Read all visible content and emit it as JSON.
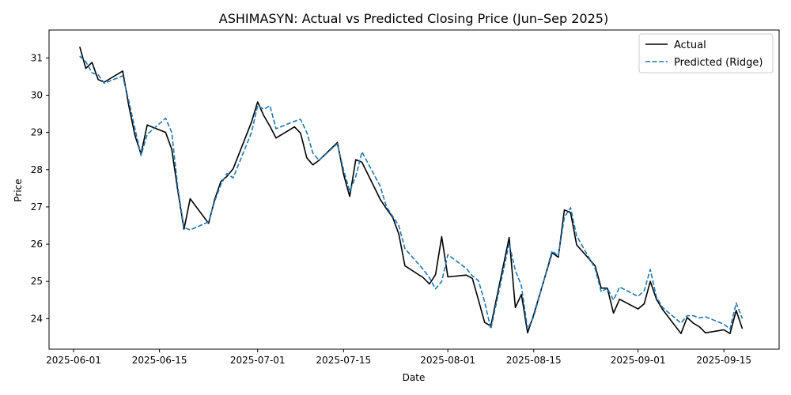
{
  "chart_data": {
    "type": "line",
    "title": "ASHIMASYN: Actual vs Predicted Closing Price (Jun–Sep 2025)",
    "xlabel": "Date",
    "ylabel": "Price",
    "x_ticks": [
      "2025-06-01",
      "2025-06-15",
      "2025-07-01",
      "2025-07-15",
      "2025-08-01",
      "2025-08-15",
      "2025-09-01",
      "2025-09-15"
    ],
    "y_ticks": [
      24,
      25,
      26,
      27,
      28,
      29,
      30,
      31
    ],
    "xlim": [
      "2025-05-28",
      "2025-09-24"
    ],
    "ylim": [
      23.18,
      31.75
    ],
    "grid": false,
    "legend_position": "top-right",
    "series": [
      {
        "name": "Actual",
        "color": "#000000",
        "style": "solid",
        "x": [
          "2025-06-02",
          "2025-06-03",
          "2025-06-04",
          "2025-06-05",
          "2025-06-06",
          "2025-06-09",
          "2025-06-10",
          "2025-06-11",
          "2025-06-12",
          "2025-06-13",
          "2025-06-16",
          "2025-06-17",
          "2025-06-18",
          "2025-06-19",
          "2025-06-20",
          "2025-06-23",
          "2025-06-24",
          "2025-06-25",
          "2025-06-26",
          "2025-06-27",
          "2025-06-30",
          "2025-07-01",
          "2025-07-02",
          "2025-07-03",
          "2025-07-04",
          "2025-07-07",
          "2025-07-08",
          "2025-07-09",
          "2025-07-10",
          "2025-07-11",
          "2025-07-14",
          "2025-07-15",
          "2025-07-16",
          "2025-07-17",
          "2025-07-18",
          "2025-07-21",
          "2025-07-22",
          "2025-07-23",
          "2025-07-24",
          "2025-07-25",
          "2025-07-28",
          "2025-07-29",
          "2025-07-30",
          "2025-07-31",
          "2025-08-01",
          "2025-08-04",
          "2025-08-05",
          "2025-08-06",
          "2025-08-07",
          "2025-08-08",
          "2025-08-11",
          "2025-08-12",
          "2025-08-13",
          "2025-08-14",
          "2025-08-15",
          "2025-08-18",
          "2025-08-19",
          "2025-08-20",
          "2025-08-21",
          "2025-08-22",
          "2025-08-25",
          "2025-08-26",
          "2025-08-27",
          "2025-08-28",
          "2025-08-29",
          "2025-09-01",
          "2025-09-02",
          "2025-09-03",
          "2025-09-04",
          "2025-09-05",
          "2025-09-08",
          "2025-09-09",
          "2025-09-10",
          "2025-09-11",
          "2025-09-12",
          "2025-09-15",
          "2025-09-16",
          "2025-09-17",
          "2025-09-18"
        ],
        "y": [
          31.3,
          30.72,
          30.88,
          30.42,
          30.35,
          30.65,
          29.72,
          28.92,
          28.42,
          29.2,
          29.0,
          28.55,
          27.42,
          26.4,
          27.22,
          26.56,
          27.2,
          27.68,
          27.82,
          28.02,
          29.28,
          29.82,
          29.45,
          29.17,
          28.85,
          29.15,
          28.98,
          28.32,
          28.13,
          28.25,
          28.73,
          27.88,
          27.28,
          28.27,
          28.2,
          27.2,
          26.95,
          26.72,
          26.28,
          25.42,
          25.1,
          24.93,
          25.18,
          26.2,
          25.12,
          25.17,
          25.08,
          24.5,
          23.9,
          23.8,
          26.18,
          24.3,
          24.65,
          23.62,
          24.1,
          25.77,
          25.65,
          26.92,
          26.85,
          25.98,
          25.42,
          24.82,
          24.82,
          24.15,
          24.52,
          24.26,
          24.4,
          25.0,
          24.52,
          24.25,
          23.6,
          24.03,
          23.88,
          23.78,
          23.62,
          23.7,
          23.6,
          24.22,
          23.73
        ]
      },
      {
        "name": "Predicted (Ridge)",
        "color": "#1f77b4",
        "style": "dashed",
        "x": [
          "2025-06-02",
          "2025-06-03",
          "2025-06-04",
          "2025-06-05",
          "2025-06-06",
          "2025-06-09",
          "2025-06-10",
          "2025-06-11",
          "2025-06-12",
          "2025-06-13",
          "2025-06-16",
          "2025-06-17",
          "2025-06-18",
          "2025-06-19",
          "2025-06-20",
          "2025-06-23",
          "2025-06-24",
          "2025-06-25",
          "2025-06-26",
          "2025-06-27",
          "2025-06-30",
          "2025-07-01",
          "2025-07-02",
          "2025-07-03",
          "2025-07-04",
          "2025-07-07",
          "2025-07-08",
          "2025-07-09",
          "2025-07-10",
          "2025-07-11",
          "2025-07-14",
          "2025-07-15",
          "2025-07-16",
          "2025-07-17",
          "2025-07-18",
          "2025-07-21",
          "2025-07-22",
          "2025-07-23",
          "2025-07-24",
          "2025-07-25",
          "2025-07-28",
          "2025-07-29",
          "2025-07-30",
          "2025-07-31",
          "2025-08-01",
          "2025-08-04",
          "2025-08-05",
          "2025-08-06",
          "2025-08-07",
          "2025-08-08",
          "2025-08-11",
          "2025-08-12",
          "2025-08-13",
          "2025-08-14",
          "2025-08-15",
          "2025-08-18",
          "2025-08-19",
          "2025-08-20",
          "2025-08-21",
          "2025-08-22",
          "2025-08-25",
          "2025-08-26",
          "2025-08-27",
          "2025-08-28",
          "2025-08-29",
          "2025-09-01",
          "2025-09-02",
          "2025-09-03",
          "2025-09-04",
          "2025-09-05",
          "2025-09-08",
          "2025-09-09",
          "2025-09-10",
          "2025-09-11",
          "2025-09-12",
          "2025-09-15",
          "2025-09-16",
          "2025-09-17",
          "2025-09-18"
        ],
        "y": [
          31.05,
          30.9,
          30.6,
          30.55,
          30.32,
          30.52,
          29.85,
          29.1,
          28.38,
          28.95,
          29.38,
          29.0,
          27.5,
          26.45,
          26.38,
          26.6,
          27.15,
          27.6,
          27.9,
          27.78,
          29.0,
          29.72,
          29.62,
          29.72,
          29.1,
          29.3,
          29.35,
          29.0,
          28.45,
          28.25,
          28.7,
          28.0,
          27.42,
          27.82,
          28.48,
          27.55,
          27.0,
          26.75,
          26.5,
          25.88,
          25.32,
          25.1,
          24.8,
          25.0,
          25.72,
          25.35,
          25.15,
          25.02,
          24.45,
          23.72,
          26.02,
          25.3,
          24.88,
          23.72,
          24.05,
          25.82,
          25.68,
          26.72,
          26.98,
          26.22,
          25.35,
          24.72,
          24.82,
          24.5,
          24.85,
          24.6,
          24.75,
          25.32,
          24.58,
          24.3,
          23.88,
          24.08,
          24.08,
          24.02,
          24.05,
          23.85,
          23.72,
          24.42,
          24.0
        ]
      }
    ]
  }
}
